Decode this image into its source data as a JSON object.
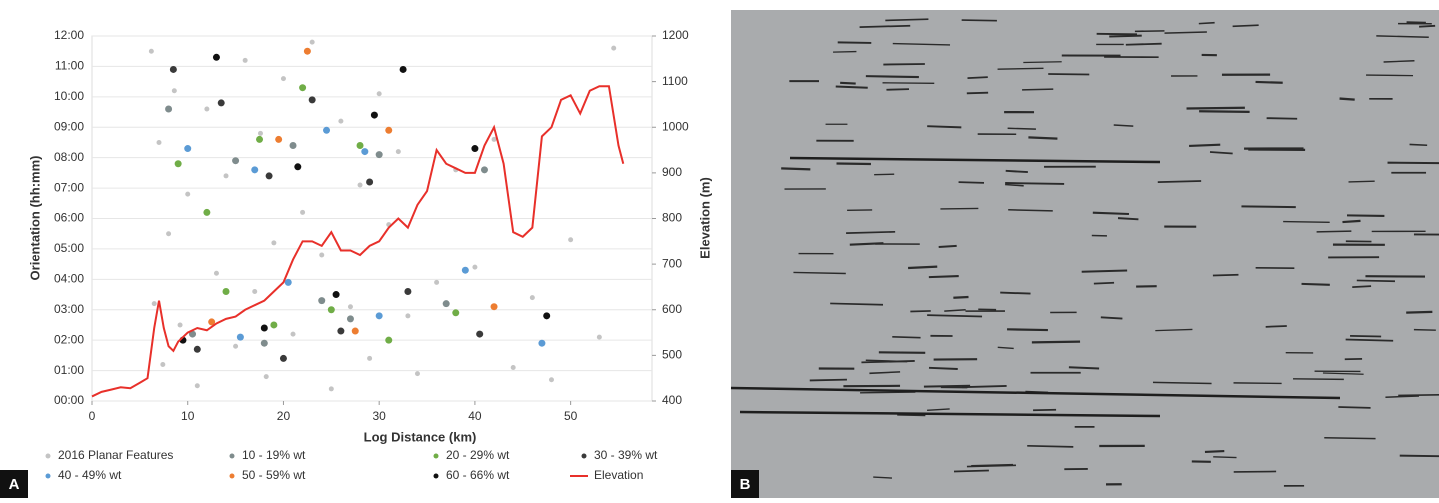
{
  "chart_data": {
    "type": "scatter",
    "y_label": "Orientation (hh:mm)",
    "y2_label": "Elevation (m)",
    "x_label": "Log Distance (km)",
    "panel_labels": [
      "A",
      "B"
    ],
    "xlim": [
      0,
      58.5
    ],
    "xticks": [
      0,
      10,
      20,
      30,
      40,
      50
    ],
    "ylim": [
      0,
      12
    ],
    "yticks": [
      {
        "value": 0,
        "label": "00:00"
      },
      {
        "value": 1,
        "label": "01:00"
      },
      {
        "value": 2,
        "label": "02:00"
      },
      {
        "value": 3,
        "label": "03:00"
      },
      {
        "value": 4,
        "label": "04:00"
      },
      {
        "value": 5,
        "label": "05:00"
      },
      {
        "value": 6,
        "label": "06:00"
      },
      {
        "value": 7,
        "label": "07:00"
      },
      {
        "value": 8,
        "label": "08:00"
      },
      {
        "value": 9,
        "label": "09:00"
      },
      {
        "value": 10,
        "label": "10:00"
      },
      {
        "value": 11,
        "label": "11:00"
      },
      {
        "value": 12,
        "label": "12:00"
      }
    ],
    "y2lim": [
      400,
      1200
    ],
    "y2ticks": [
      400,
      500,
      600,
      700,
      800,
      900,
      1000,
      1100,
      1200
    ],
    "series": [
      {
        "name": "2016 Planar Features",
        "color": "#c4c4c4",
        "x": [
          6.2,
          6.5,
          7,
          7.4,
          8,
          8.6,
          9.2,
          10,
          11,
          12,
          13,
          14,
          15,
          16,
          17,
          17.6,
          18.2,
          19,
          20,
          21,
          22,
          23,
          24,
          25,
          26,
          27,
          28,
          29,
          30,
          31,
          32,
          33,
          34,
          36,
          38,
          40,
          42,
          44,
          46,
          48,
          50,
          53,
          54.5
        ],
        "values": [
          11.5,
          3.2,
          8.5,
          1.2,
          5.5,
          10.2,
          2.5,
          6.8,
          0.5,
          9.6,
          4.2,
          7.4,
          1.8,
          11.2,
          3.6,
          8.8,
          0.8,
          5.2,
          10.6,
          2.2,
          6.2,
          11.8,
          4.8,
          0.4,
          9.2,
          3.1,
          7.1,
          1.4,
          10.1,
          5.8,
          8.2,
          2.8,
          0.9,
          3.9,
          7.6,
          4.4,
          8.6,
          1.1,
          3.4,
          0.7,
          5.3,
          2.1,
          11.6
        ]
      },
      {
        "name": "10 - 19% wt",
        "color": "#7f8c8d",
        "x": [
          8,
          10.5,
          15,
          18,
          21,
          24,
          27,
          30,
          37,
          41
        ],
        "values": [
          9.6,
          2.2,
          7.9,
          1.9,
          8.4,
          3.3,
          2.7,
          8.1,
          3.2,
          7.6
        ]
      },
      {
        "name": "20 - 29% wt",
        "color": "#70ad47",
        "x": [
          9,
          12,
          14,
          17.5,
          19,
          22,
          25,
          28,
          31,
          38
        ],
        "values": [
          7.8,
          6.2,
          3.6,
          8.6,
          2.5,
          10.3,
          3.0,
          8.4,
          2.0,
          2.9
        ]
      },
      {
        "name": "30 - 39% wt",
        "color": "#3a3a3a",
        "x": [
          8.5,
          11,
          13.5,
          18.5,
          20,
          23,
          26,
          29,
          33,
          40.5
        ],
        "values": [
          10.9,
          1.7,
          9.8,
          7.4,
          1.4,
          9.9,
          2.3,
          7.2,
          3.6,
          2.2
        ]
      },
      {
        "name": "40 - 49% wt",
        "color": "#5b9bd5",
        "x": [
          10,
          15.5,
          17,
          20.5,
          24.5,
          28.5,
          30,
          39,
          47
        ],
        "values": [
          8.3,
          2.1,
          7.6,
          3.9,
          8.9,
          8.2,
          2.8,
          4.3,
          1.9
        ]
      },
      {
        "name": "50 - 59% wt",
        "color": "#ed7d31",
        "x": [
          12.5,
          19.5,
          22.5,
          27.5,
          31,
          42
        ],
        "values": [
          2.6,
          8.6,
          11.5,
          2.3,
          8.9,
          3.1
        ]
      },
      {
        "name": "60 - 66% wt",
        "color": "#111111",
        "x": [
          9.5,
          13,
          18,
          21.5,
          25.5,
          29.5,
          32.5,
          40,
          47.5
        ],
        "values": [
          2.0,
          11.3,
          2.4,
          7.7,
          3.5,
          9.4,
          10.9,
          8.3,
          2.8
        ]
      },
      {
        "name": "Elevation",
        "color": "#e8302a",
        "type": "line",
        "axis": "y2",
        "x": [
          0,
          1,
          2,
          3,
          4,
          5,
          5.8,
          6.5,
          7,
          7.5,
          8,
          8.5,
          9,
          10,
          11,
          12,
          13,
          14,
          15,
          16,
          17,
          18,
          19,
          20,
          21,
          22,
          23,
          24,
          25,
          26,
          27,
          28,
          29,
          30,
          31,
          32,
          33,
          34,
          35,
          36,
          37,
          38,
          39,
          40,
          41,
          42,
          43,
          44,
          45,
          46,
          47,
          48,
          49,
          50,
          51,
          52,
          53,
          54,
          55,
          55.5
        ],
        "values": [
          410,
          420,
          425,
          430,
          428,
          440,
          450,
          560,
          620,
          560,
          520,
          510,
          530,
          550,
          560,
          555,
          570,
          580,
          585,
          600,
          610,
          620,
          640,
          660,
          710,
          750,
          750,
          740,
          770,
          730,
          730,
          720,
          740,
          750,
          780,
          800,
          780,
          830,
          860,
          950,
          920,
          910,
          900,
          900,
          960,
          1000,
          920,
          770,
          760,
          780,
          980,
          1000,
          1060,
          1070,
          1030,
          1080,
          1090,
          1090,
          960,
          920
        ]
      }
    ]
  }
}
